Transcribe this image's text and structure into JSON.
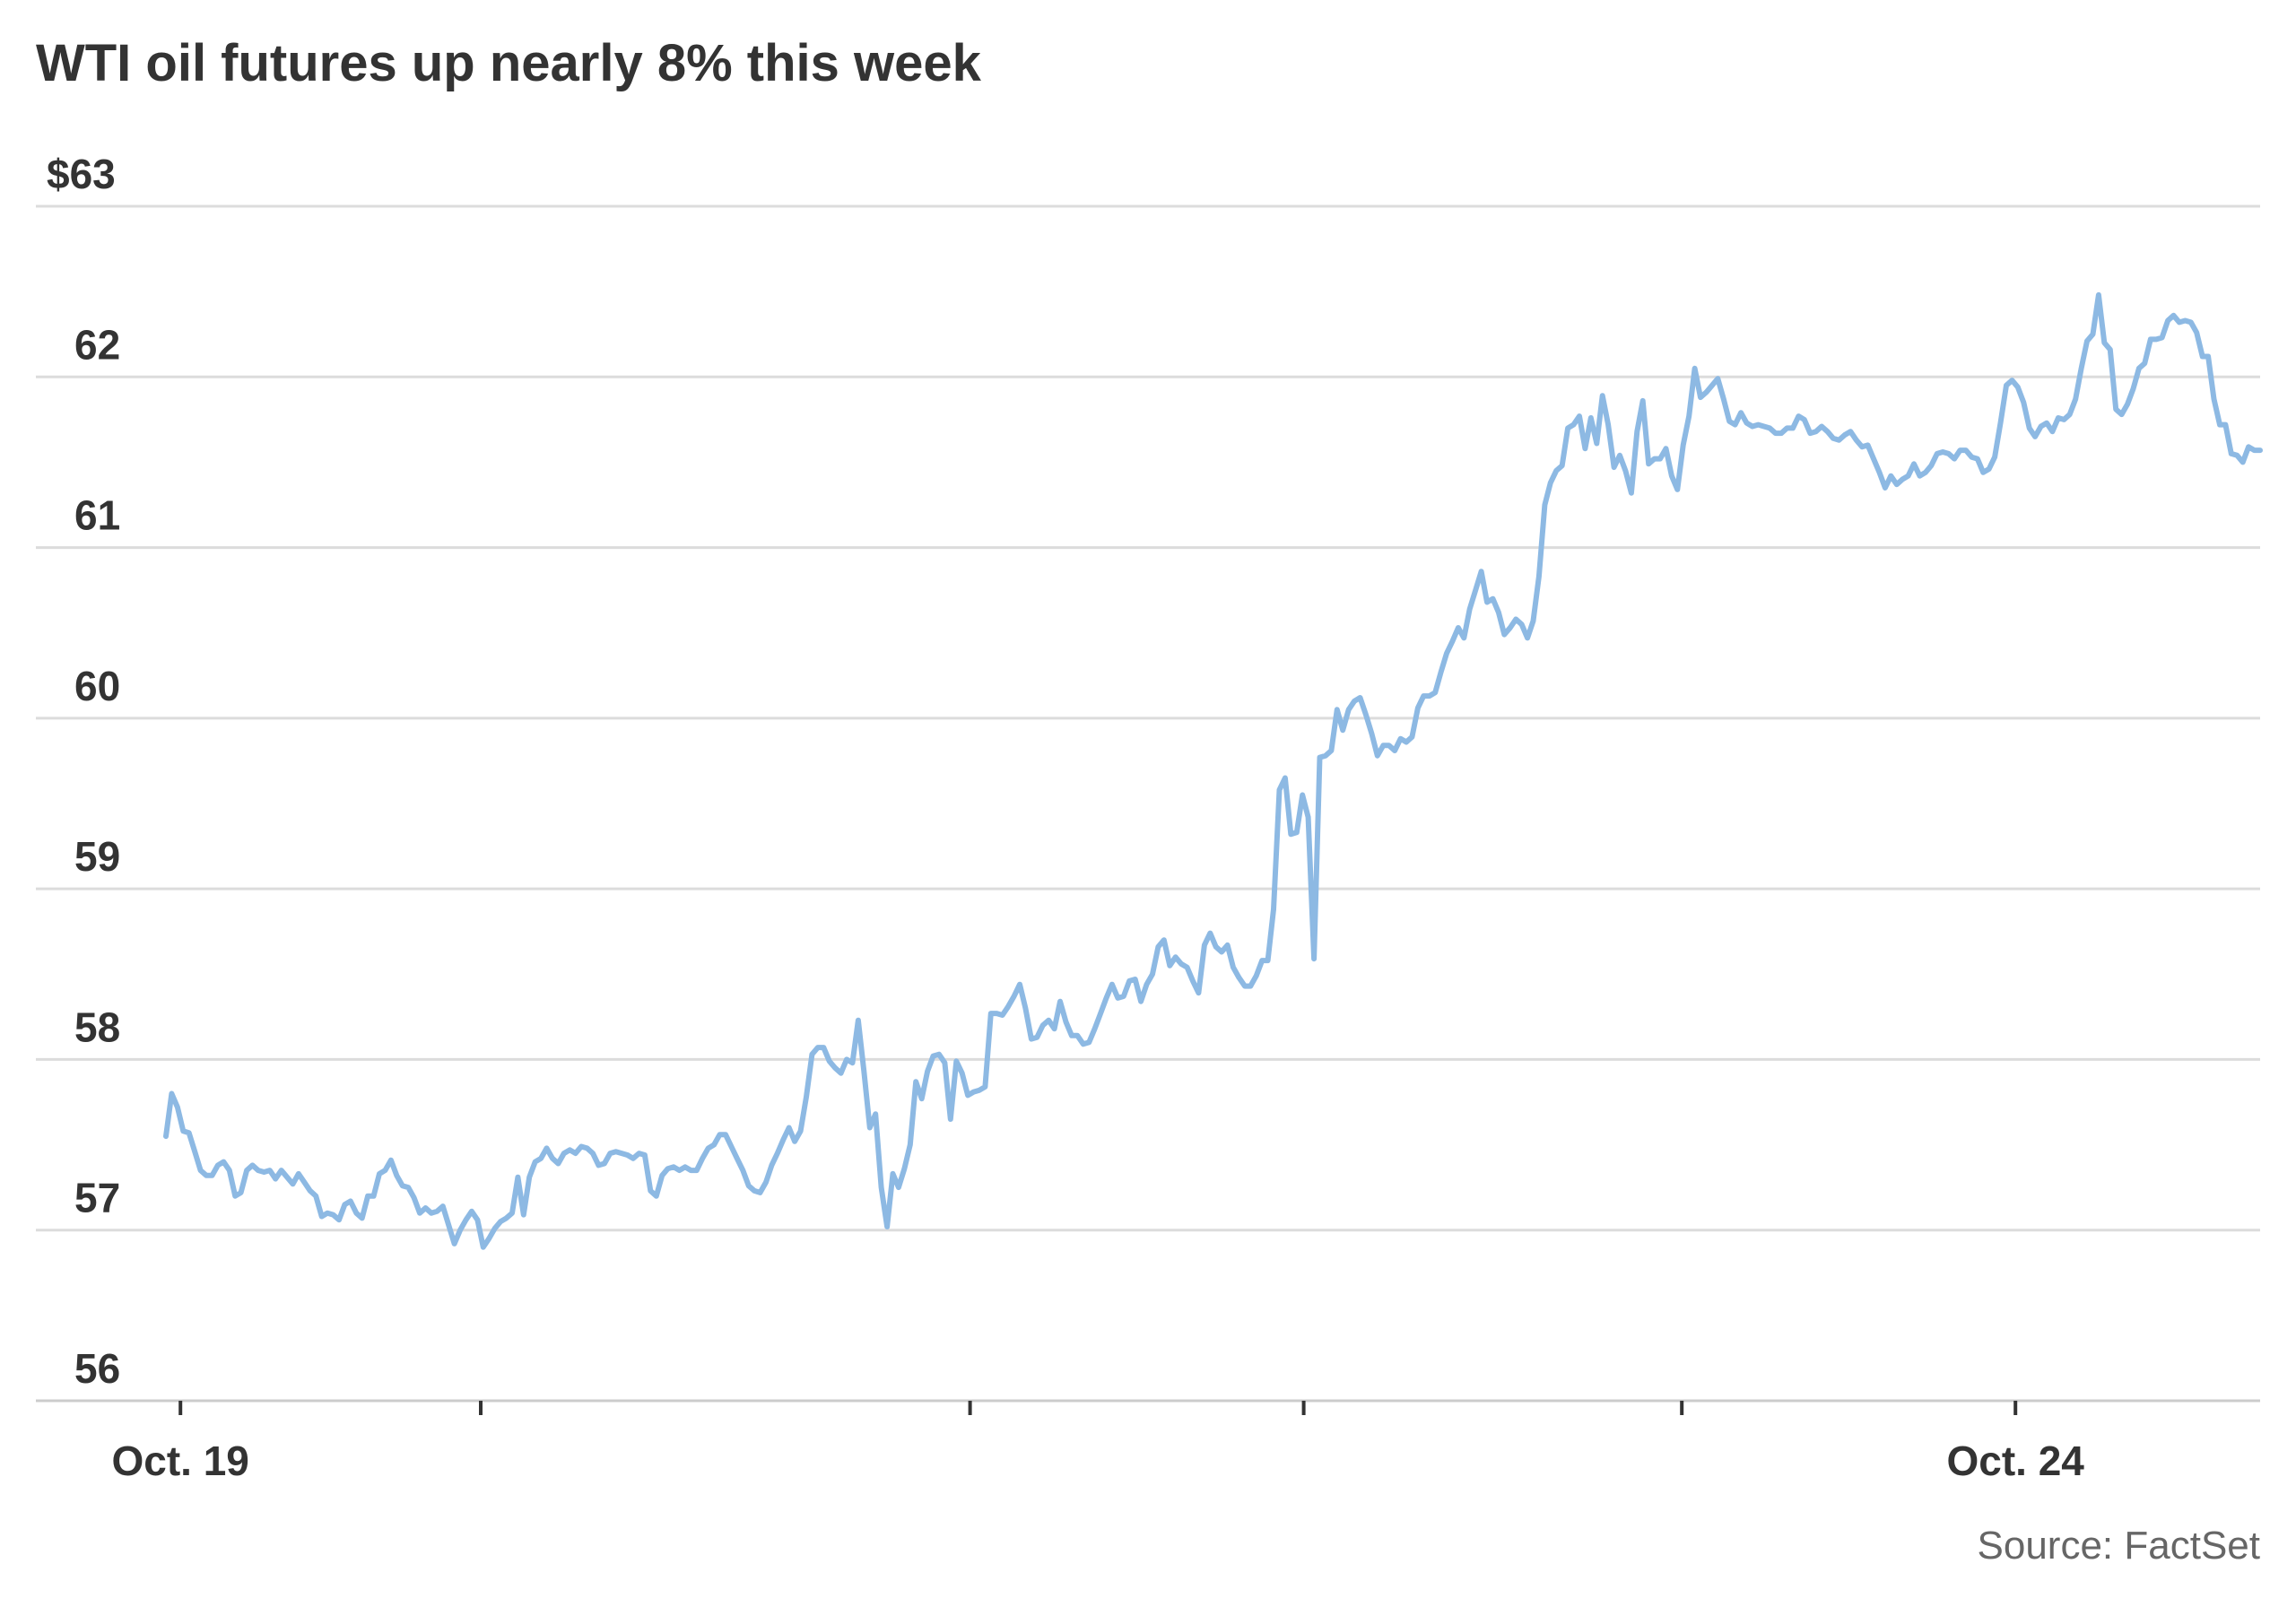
{
  "chart_data": {
    "type": "line",
    "title": "WTI oil futures up nearly 8% this week",
    "source": "Source: FactSet",
    "xlabel": "",
    "ylabel": "",
    "x_tick_labels": [
      "Oct. 19",
      "Oct. 24"
    ],
    "x_tick_positions": [
      0.065,
      0.2,
      0.42,
      0.57,
      0.74,
      0.89
    ],
    "ylim": [
      56,
      63
    ],
    "y_ticks": [
      56,
      57,
      58,
      59,
      60,
      61,
      62,
      63
    ],
    "y_tick_labels": [
      "56",
      "57",
      "58",
      "59",
      "60",
      "61",
      "62",
      "$63"
    ],
    "grid": true,
    "legend": "none",
    "line_color": "#8db9e3",
    "series": [
      {
        "values": [
          57.55,
          57.8,
          57.72,
          57.58,
          57.57,
          57.46,
          57.35,
          57.32,
          57.32,
          57.38,
          57.4,
          57.35,
          57.2,
          57.22,
          57.35,
          57.38,
          57.35,
          57.34,
          57.35,
          57.3,
          57.35,
          57.31,
          57.27,
          57.33,
          57.28,
          57.23,
          57.2,
          57.08,
          57.1,
          57.09,
          57.06,
          57.15,
          57.17,
          57.1,
          57.07,
          57.2,
          57.2,
          57.33,
          57.35,
          57.41,
          57.32,
          57.26,
          57.25,
          57.19,
          57.1,
          57.13,
          57.1,
          57.11,
          57.14,
          57.03,
          56.92,
          57.0,
          57.06,
          57.11,
          57.06,
          56.9,
          56.95,
          57.01,
          57.05,
          57.07,
          57.1,
          57.31,
          57.09,
          57.31,
          57.4,
          57.42,
          57.48,
          57.42,
          57.39,
          57.45,
          57.47,
          57.45,
          57.49,
          57.48,
          57.45,
          57.38,
          57.39,
          57.45,
          57.46,
          57.45,
          57.44,
          57.42,
          57.45,
          57.44,
          57.23,
          57.2,
          57.32,
          57.36,
          57.37,
          57.35,
          57.37,
          57.35,
          57.35,
          57.42,
          57.48,
          57.5,
          57.56,
          57.56,
          57.49,
          57.42,
          57.35,
          57.26,
          57.23,
          57.22,
          57.28,
          57.38,
          57.45,
          57.53,
          57.6,
          57.52,
          57.58,
          57.78,
          58.03,
          58.07,
          58.07,
          57.99,
          57.95,
          57.92,
          58.0,
          57.98,
          58.23,
          57.93,
          57.6,
          57.68,
          57.25,
          57.02,
          57.33,
          57.25,
          57.36,
          57.5,
          57.87,
          57.77,
          57.93,
          58.02,
          58.03,
          57.98,
          57.65,
          57.99,
          57.92,
          57.79,
          57.81,
          57.82,
          57.84,
          58.27,
          58.27,
          58.26,
          58.31,
          58.37,
          58.44,
          58.3,
          58.12,
          58.13,
          58.2,
          58.23,
          58.18,
          58.34,
          58.22,
          58.14,
          58.14,
          58.09,
          58.1,
          58.18,
          58.27,
          58.36,
          58.44,
          58.36,
          58.37,
          58.46,
          58.47,
          58.34,
          58.44,
          58.5,
          58.66,
          58.7,
          58.55,
          58.6,
          58.56,
          58.54,
          58.46,
          58.39,
          58.67,
          58.74,
          58.66,
          58.63,
          58.67,
          58.54,
          58.48,
          58.43,
          58.43,
          58.49,
          58.58,
          58.58,
          58.88,
          59.58,
          59.65,
          59.32,
          59.33,
          59.55,
          59.42,
          58.59,
          59.77,
          59.78,
          59.81,
          60.05,
          59.93,
          60.05,
          60.1,
          60.12,
          60.02,
          59.91,
          59.78,
          59.84,
          59.84,
          59.81,
          59.88,
          59.86,
          59.89,
          60.06,
          60.13,
          60.13,
          60.15,
          60.27,
          60.38,
          60.45,
          60.53,
          60.47,
          60.64,
          60.75,
          60.86,
          60.68,
          60.7,
          60.62,
          60.49,
          60.53,
          60.58,
          60.55,
          60.47,
          60.57,
          60.83,
          61.25,
          61.38,
          61.45,
          61.48,
          61.7,
          61.72,
          61.77,
          61.58,
          61.76,
          61.61,
          61.89,
          61.72,
          61.47,
          61.54,
          61.45,
          61.32,
          61.68,
          61.86,
          61.49,
          61.52,
          61.52,
          61.58,
          61.42,
          61.34,
          61.6,
          61.77,
          62.05,
          61.88,
          61.91,
          61.95,
          61.99,
          61.87,
          61.74,
          61.72,
          61.79,
          61.73,
          61.71,
          61.72,
          61.71,
          61.7,
          61.67,
          61.67,
          61.7,
          61.7,
          61.77,
          61.75,
          61.67,
          61.68,
          61.71,
          61.68,
          61.64,
          61.63,
          61.66,
          61.68,
          61.63,
          61.59,
          61.6,
          61.52,
          61.44,
          61.35,
          61.42,
          61.37,
          61.4,
          61.42,
          61.49,
          61.42,
          61.44,
          61.48,
          61.55,
          61.56,
          61.55,
          61.52,
          61.57,
          61.57,
          61.53,
          61.52,
          61.44,
          61.46,
          61.53,
          61.73,
          61.95,
          61.98,
          61.94,
          61.85,
          61.7,
          61.65,
          61.71,
          61.73,
          61.68,
          61.76,
          61.75,
          61.78,
          61.87,
          62.05,
          62.21,
          62.25,
          62.48,
          62.2,
          62.16,
          61.81,
          61.78,
          61.84,
          61.93,
          62.05,
          62.08,
          62.22,
          62.22,
          62.23,
          62.33,
          62.36,
          62.32,
          62.33,
          62.32,
          62.26,
          62.12,
          62.12,
          61.87,
          61.72,
          61.72,
          61.55,
          61.54,
          61.5,
          61.59,
          61.57,
          61.57
        ]
      }
    ]
  }
}
